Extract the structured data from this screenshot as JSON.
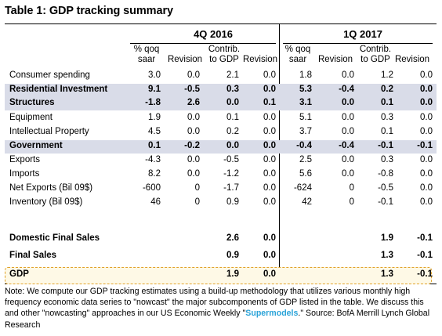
{
  "title": "Table 1: GDP tracking summary",
  "periods": [
    "4Q 2016",
    "1Q 2017"
  ],
  "col_headers": [
    [
      "% qoq",
      "saar"
    ],
    [
      "",
      "Revision"
    ],
    [
      "Contrib.",
      "to GDP"
    ],
    [
      "",
      "Revision"
    ],
    [
      "% qoq",
      "saar"
    ],
    [
      "",
      "Revision"
    ],
    [
      "Contrib.",
      "to GDP"
    ],
    [
      "",
      "Revision"
    ]
  ],
  "rows": [
    {
      "label": "Consumer spending",
      "values": [
        "3.0",
        "0.0",
        "2.1",
        "0.0",
        "1.8",
        "0.0",
        "1.2",
        "0.0"
      ]
    },
    {
      "label": "Residential Investment",
      "values": [
        "9.1",
        "-0.5",
        "0.3",
        "0.0",
        "5.3",
        "-0.4",
        "0.2",
        "0.0"
      ]
    },
    {
      "label": "Structures",
      "values": [
        "-1.8",
        "2.6",
        "0.0",
        "0.1",
        "3.1",
        "0.0",
        "0.1",
        "0.0"
      ]
    },
    {
      "label": "Equipment",
      "values": [
        "1.9",
        "0.0",
        "0.1",
        "0.0",
        "5.1",
        "0.0",
        "0.3",
        "0.0"
      ]
    },
    {
      "label": "Intellectual Property",
      "values": [
        "4.5",
        "0.0",
        "0.2",
        "0.0",
        "3.7",
        "0.0",
        "0.1",
        "0.0"
      ]
    },
    {
      "label": "Government",
      "values": [
        "0.1",
        "-0.2",
        "0.0",
        "0.0",
        "-0.4",
        "-0.4",
        "-0.1",
        "-0.1"
      ]
    },
    {
      "label": "Exports",
      "values": [
        "-4.3",
        "0.0",
        "-0.5",
        "0.0",
        "2.5",
        "0.0",
        "0.3",
        "0.0"
      ]
    },
    {
      "label": "Imports",
      "values": [
        "8.2",
        "0.0",
        "-1.2",
        "0.0",
        "5.6",
        "0.0",
        "-0.8",
        "0.0"
      ]
    },
    {
      "label": "Net Exports (Bil 09$)",
      "values": [
        "-600",
        "0",
        "-1.7",
        "0.0",
        "-624",
        "0",
        "-0.5",
        "0.0"
      ]
    },
    {
      "label": "Inventory (Bil 09$)",
      "values": [
        "46",
        "0",
        "0.9",
        "0.0",
        "42",
        "0",
        "-0.1",
        "0.0"
      ]
    },
    {
      "label": "Domestic Final Sales",
      "values": [
        "",
        "",
        "2.6",
        "0.0",
        "",
        "",
        "1.9",
        "-0.1"
      ]
    },
    {
      "label": "Final Sales",
      "values": [
        "",
        "",
        "0.9",
        "0.0",
        "",
        "",
        "1.3",
        "-0.1"
      ]
    },
    {
      "label": "GDP",
      "values": [
        "",
        "",
        "1.9",
        "0.0",
        "",
        "",
        "1.3",
        "-0.1"
      ]
    }
  ],
  "note": {
    "pre": "Note: We compute our GDP tracking estimates using a build-up methodology that utilizes various monthly high frequency economic data series to \"nowcast\" the major subcomponents of GDP listed in the table. We discuss this and other \"nowcasting\" approaches in our US Economic Weekly \"",
    "link": "Supermodels",
    "post": ".\" Source: BofA Merrill Lynch Global Research"
  },
  "colors": {
    "shade": "#d9dce8",
    "gdp_border": "#e1a22a",
    "link": "#2aa3d8"
  }
}
